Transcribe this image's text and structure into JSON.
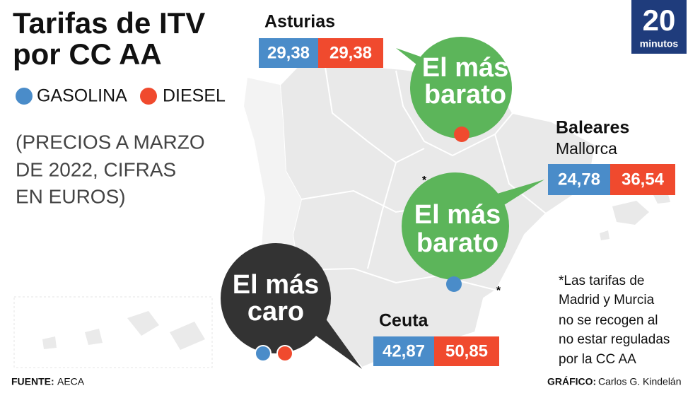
{
  "title_lines": [
    "Tarifas de ITV",
    "por CC AA"
  ],
  "legend": [
    "GASOLINA",
    "DIESEL"
  ],
  "note_lines": [
    "(PRECIOS A MARZO",
    "DE 2022, CIFRAS",
    "EN EUROS)"
  ],
  "regions": [
    {
      "name": "Asturias",
      "gasolina": "29,38",
      "diesel": "29,38"
    },
    {
      "name": "Baleares",
      "subname": "Mallorca",
      "gasolina": "24,78",
      "diesel": "36,54"
    },
    {
      "name": "Ceuta",
      "gasolina": "42,87",
      "diesel": "50,85"
    }
  ],
  "bubbles": [
    {
      "lines": [
        "El más",
        "barato"
      ]
    },
    {
      "lines": [
        "El más",
        "barato"
      ]
    },
    {
      "lines": [
        "El más",
        "caro"
      ]
    }
  ],
  "map_marks": [
    "*",
    "*"
  ],
  "footnote_lines": [
    "*Las tarifas de",
    "Madrid y Murcia",
    "no se recogen al",
    "no estar reguladas",
    "por la CC AA"
  ],
  "source": {
    "label": "FUENTE:",
    "value": "AECA"
  },
  "credit": {
    "label": "GRÁFICO:",
    "value": "Carlos G. Kindelán"
  },
  "logo": {
    "number": "20",
    "word": "minutos"
  }
}
